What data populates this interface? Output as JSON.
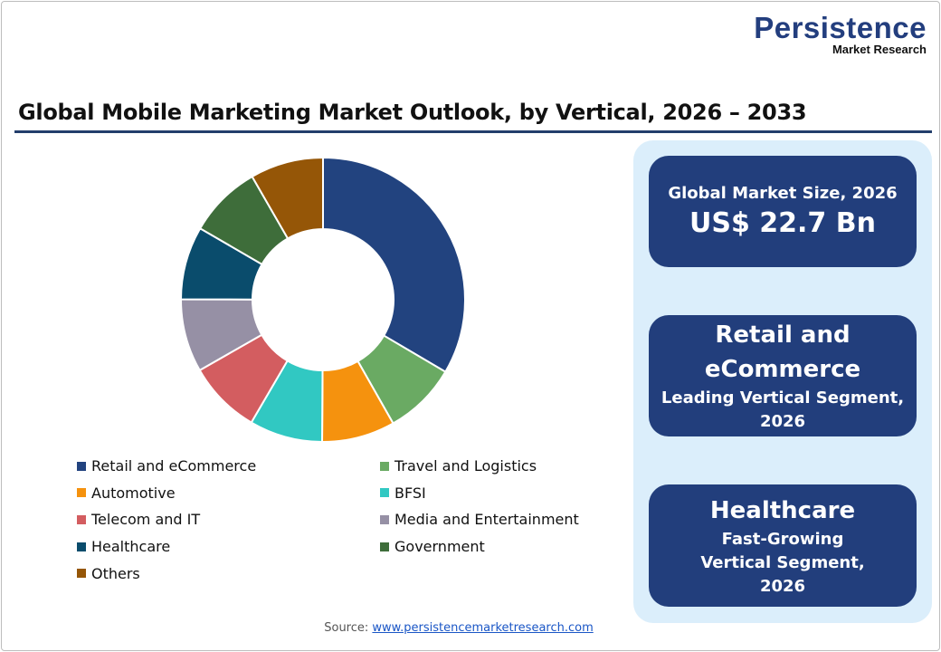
{
  "logo": {
    "name": "Persistence",
    "sub": "Market Research"
  },
  "title": "Global Mobile Marketing Market Outlook, by Vertical, 2026 – 2033",
  "cards": [
    {
      "label": "Global Market Size, 2026",
      "value": "US$ 22.7 Bn"
    },
    {
      "value": "Retail and eCommerce",
      "label": "Leading Vertical Segment, 2026"
    },
    {
      "value": "Healthcare",
      "label": "Fast-Growing Vertical Segment, 2026"
    }
  ],
  "source": {
    "label": "Source:",
    "link": "www.persistencemarketresearch.com"
  },
  "chart_data": {
    "type": "pie",
    "donut": true,
    "title": "Global Mobile Marketing Market Outlook, by Vertical, 2026 – 2033",
    "legend": "bottom",
    "categories": [
      "Retail and eCommerce",
      "Travel and Logistics",
      "Automotive",
      "BFSI",
      "Telecom and IT",
      "Media and Entertainment",
      "Healthcare",
      "Government",
      "Others"
    ],
    "values": [
      33.4,
      8.3,
      8.3,
      8.3,
      8.3,
      8.3,
      8.3,
      8.3,
      8.3
    ],
    "colors": [
      "#22437f",
      "#6aaa63",
      "#f5920e",
      "#31c8c2",
      "#d35d60",
      "#9690a5",
      "#0a4c6c",
      "#3e6d3a",
      "#955607"
    ]
  }
}
